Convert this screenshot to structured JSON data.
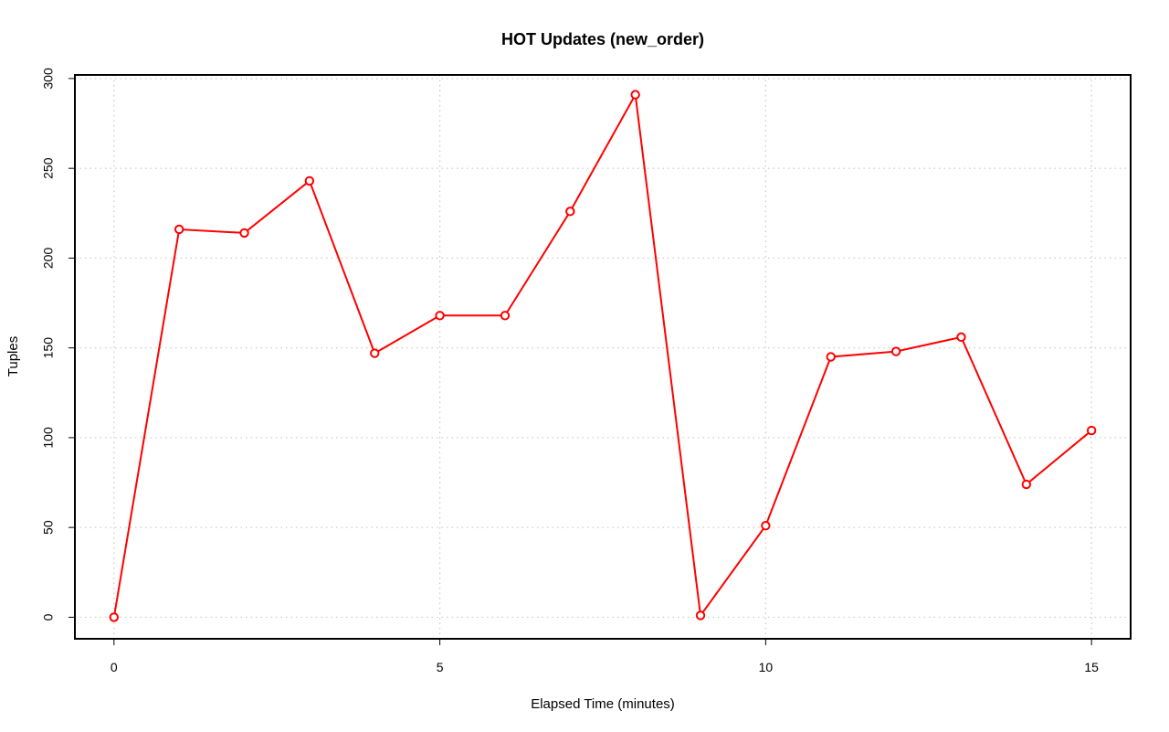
{
  "chart_data": {
    "type": "line",
    "title": "HOT Updates (new_order)",
    "xlabel": "Elapsed Time (minutes)",
    "ylabel": "Tuples",
    "xlim": [
      -0.6,
      15.6
    ],
    "ylim": [
      -12,
      302
    ],
    "xticks": [
      0,
      5,
      10,
      15
    ],
    "yticks": [
      0,
      50,
      100,
      150,
      200,
      250,
      300
    ],
    "grid": true,
    "line_color": "#ff0000",
    "series": [
      {
        "x": [
          0,
          1,
          2,
          3,
          4,
          5,
          6,
          7,
          8,
          9,
          10,
          11,
          12,
          13,
          14,
          15
        ],
        "values": [
          0,
          216,
          214,
          243,
          147,
          168,
          168,
          226,
          291,
          1,
          51,
          145,
          148,
          156,
          74,
          104
        ]
      }
    ]
  }
}
